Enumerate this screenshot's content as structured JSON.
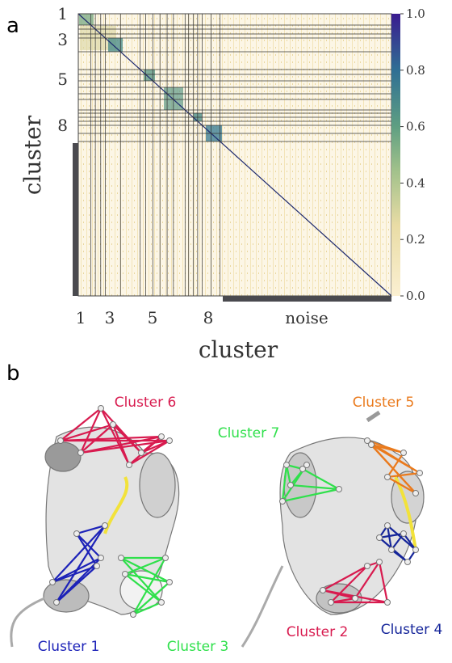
{
  "panel_a": {
    "label": "a",
    "y_axis_label": "cluster",
    "x_axis_label": "cluster",
    "row_labels": [
      "1",
      "3",
      "5",
      "8"
    ],
    "column_labels": [
      "1",
      "3",
      "5",
      "8",
      "noise"
    ],
    "colorbar_lim": [
      0,
      1
    ],
    "colorbar_ticks": [
      {
        "value": 0,
        "label": "0.0"
      },
      {
        "value": 0.2,
        "label": "0.2"
      },
      {
        "value": 0.4,
        "label": "0.4"
      },
      {
        "value": 0.6,
        "label": "0.6"
      },
      {
        "value": 0.8,
        "label": "0.8"
      },
      {
        "value": 1,
        "label": "1.0"
      }
    ]
  },
  "panel_b": {
    "label": "b",
    "clusters": [
      {
        "name": "Cluster 6",
        "color": "#d81b4f"
      },
      {
        "name": "Cluster 5",
        "color": "#ea7a1c"
      },
      {
        "name": "Cluster 7",
        "color": "#2fe04b"
      },
      {
        "name": "Cluster 1",
        "color": "#1c22b8"
      },
      {
        "name": "Cluster 3",
        "color": "#2fe04b"
      },
      {
        "name": "Cluster 2",
        "color": "#d81b4f"
      },
      {
        "name": "Cluster 4",
        "color": "#15259a"
      }
    ]
  }
}
